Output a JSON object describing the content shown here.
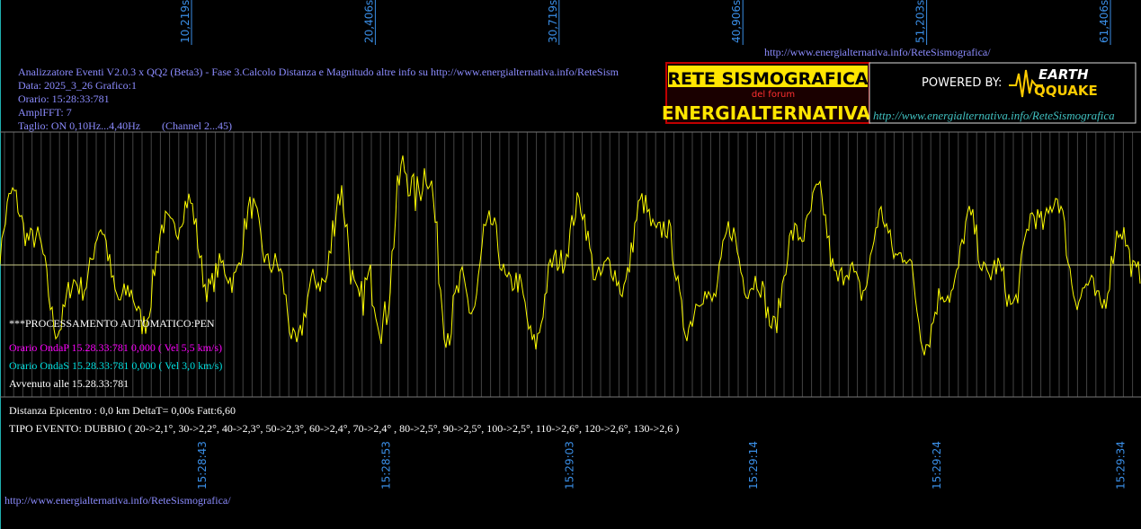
{
  "top_url": "http://www.energialternativa.info/ReteSismografica/",
  "header": {
    "lines": [
      "Analizzatore Eventi V2.0.3 x QQ2 (Beta3) - Fase 3.Calcolo Distanza e Magnitudo altre info su http://www.energialternativa.info/ReteSism",
      "Data: 2025_3_26 Grafico:1",
      "Orario: 15:28:33:781",
      "AmplFFT: 7",
      "Taglio: ON 0,10Hz...4,40Hz"
    ],
    "channel": "(Channel 2...45)"
  },
  "logo": {
    "title": "RETE SISMOGRAFICA",
    "subtitle": "del forum",
    "name": "ENERGIALTERNATIVA",
    "powered": "POWERED BY:",
    "brand_top": "EARTH",
    "brand_bottom": "QQUAKE",
    "url": "http://www.energialternativa.info/ReteSismografica"
  },
  "top_times": [
    "10,219s",
    "20,406s",
    "30,719s",
    "40,906s",
    "51,203s",
    "61,406s"
  ],
  "bottom_times": [
    "15:28:43",
    "15:28:53",
    "15:29:03",
    "15:29:14",
    "15:29:24",
    "15:29:34"
  ],
  "processing": {
    "status": "***PROCESSAMENTO AUTOMATICO:PEN",
    "wave_p": "Orario OndaP 15.28.33:781  0,000 ( Vel 5,5 km/s)",
    "wave_s": "Orario OndaS 15.28.33:781  0,000 ( Vel 3,0 km/s)",
    "occurred": "Avvenuto alle 15.28.33:781"
  },
  "event": {
    "distance": "Distanza Epicentro : 0,0 km DeltaT= 0,00s  Fatt:6,60",
    "type": "TIPO EVENTO: DUBBIO ( 20->2,1°, 30->2,2°, 40->2,3°, 50->2,3°, 60->2,4°, 70->2,4° , 80->2,5°, 90->2,5°, 100->2,5°, 110->2,6°, 120->2,6°, 130->2,6 )"
  },
  "footer_url": "http://www.energialternativa.info/ReteSismografica/"
}
